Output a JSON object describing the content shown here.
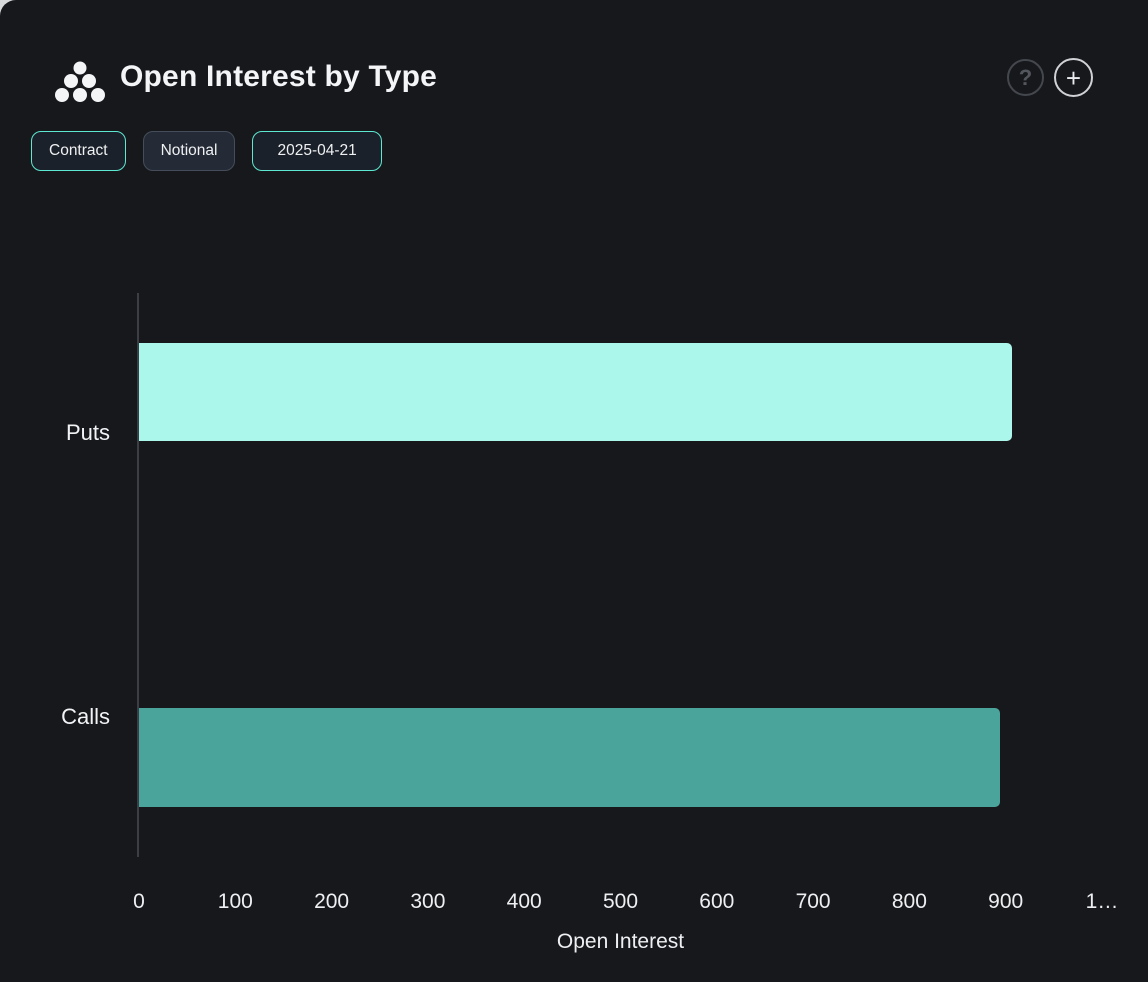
{
  "panel": {
    "background": "#16181c",
    "surround_background": "#d8d9da"
  },
  "header": {
    "title": "Open Interest by Type",
    "icon": "cluster-pyramid-icon",
    "help_glyph": "?",
    "add_glyph": "+"
  },
  "toolbar": {
    "buttons": [
      {
        "label": "Contract",
        "active": true
      },
      {
        "label": "Notional",
        "active": false
      },
      {
        "label": "2025-04-21",
        "active": true
      }
    ],
    "active_border_color": "#5de8d1",
    "inactive_border_color": "#444d59"
  },
  "chart_data": {
    "type": "bar",
    "orientation": "horizontal",
    "title": "Open Interest by Type",
    "categories": [
      "Puts",
      "Calls"
    ],
    "values": [
      907,
      894
    ],
    "colors": [
      "#ACF7EB",
      "#4BA49B"
    ],
    "xlabel": "Open Interest",
    "ylabel": "",
    "xlim": [
      0,
      1000
    ],
    "xticks": [
      0,
      100,
      200,
      300,
      400,
      500,
      600,
      700,
      800,
      900,
      1000
    ],
    "xtick_labels": [
      "0",
      "100",
      "200",
      "300",
      "400",
      "500",
      "600",
      "700",
      "800",
      "900",
      "1…"
    ],
    "grid": false,
    "legend": false
  }
}
